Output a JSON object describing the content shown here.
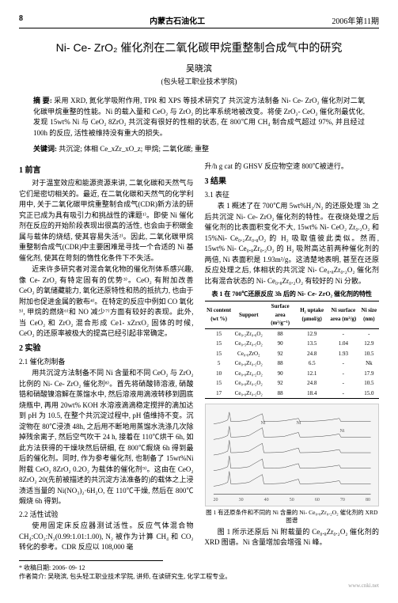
{
  "header": {
    "page_num": "8",
    "journal": "内蒙古石油化工",
    "issue": "2006年第11期"
  },
  "title": "Ni- Ce- ZrO₂ 催化剂在二氧化碳甲烷重整制合成气中的研究",
  "author": "吴晓滨",
  "affiliation": "(包头轻工职业技术学院)",
  "abstract_label": "摘  要:",
  "abstract": "采用 XRD, 氮化学吸附作用, TPR 和 XPS 等技术研究了 共沉淀方法制备 Ni- Ce- ZrO₂ 催化剂对二氧化碳甲烷重整的性能。Ni 的载入量和 CeO₂ 与 ZrO₂ 的比率系统地被改变。将使 ZrO₂- CeO₂ 催化剂最优化, 发现 15wt% Ni 与 CeO₂ 8ZrO₂ 共沉淀有很好的性相的状态, 在 800℃用 CH₄ 制合成气超过 97%, 并且经过 100h 的反应, 活性被维持没有重大的损失。",
  "keywords_label": "关键词:",
  "keywords": "共沉淀; 体相 Ce_xZr_xO_z; 甲烷; 二氧化碳; 重整",
  "col1": {
    "s1_head": "1  前言",
    "s1_p1": "对于温室效应和能源资源来讲, 二氧化碳和天然气与它们是密切相关的。最近, 在二氧化碳和天然气的化学利用中, 关于二氧化碳甲烷重整制合成气(CDR)新方法的研究正已成为具有吸引力和挑战性的课题¹⁾。即使 Ni 催化剂在反应的开始阶段表现出很高的活性, 也会由于积碳金属与载体的烧结, 使其容易失活²⁾。因此, 二氧化碳甲烷重整制合成气(CDR)中主要困难是寻找一个合适的 Ni 基催化剂, 使其在苛刻的惰性化条件下不失活。",
    "s1_p2": "近来许多研究者对混合氧化物的催化剂体系感兴趣, 像 Ce- ZrO₂ 有特定固有的优势³⁾。CeO₂ 有附加改善 CeO₂ 的氧储藏能力, 氧化还原特性和热的抵抗力, 也由于附加也促进金属的散布⁴⁾。在特定的反应中例如 CO 氧化⁵⁾, 甲烷的燃烧⁶⁾和 NO 减少⁷⁾方面有较好的表现。此外, 当 CeO₂ 和 ZrO₂ 混合形成 Ce1- xZrxO₂ 固体的时候, CeO₂ 的还原率被极大的提高已经引起非常确定。",
    "s2_head": "2  实验",
    "s2_1_head": "2.1  催化剂制备",
    "s2_1_p1": "用共沉淀方法制备不同 Ni 含量和不同 CeO₂ 与 ZrO₂ 比例的 Ni- Ce- ZrO₂ 催化剂⁸⁾。首先将硝酸铈溶液, 硝酸锆和硝酸镍溶解在蒸馏水中, 然后溶液用滴液转移到圆底烧瓶中, 再用 20wt% KOH 水溶液滴滴稳定搅拌的滴加达到 pH 为 10.5, 在整个共沉淀过程中, pH 值维持不变。沉淀物在 80℃浸渍 48h, 之后用不断地用蒸馏水洗涤几次除掉残余离子, 然后空气吹干 24 h, 接着在 110℃烘干 6h, 如此方法获得的干燥块然后研细, 在 800℃煆烧 6h 得到最后的催化剂。同时, 作为参考催化剂, 也制备了 15wt%Ni 附载 CeO₂ 8ZrO₂ 0.2O₂ 为载体的催化剂⁹⁾。这由在 CeO₂ 8ZrO₂ 20(先前被描述的共沉淀方法准备的)的载体之上浸渍适当量的 Ni(NO₃)₂·6H₂O, 在 110℃干燥, 然后在 800℃煆烧 6h 得到。",
    "s2_2_head": "2.2  活性试验",
    "s2_2_p1": "使用固定床反应器测试活性。反应气体混合物 CH₄:CO₂:N₂(0.99:1.01:1.00), N₂ 被作为计算 CH₄ 和 CO₂ 转化的参考。CDR 反应以 108,000 毫"
  },
  "col2": {
    "p0": "升/h g cat 的 GHSV 反应物空速 800℃被进行。",
    "s3_head": "3  结果",
    "s3_1_head": "3.1  表征",
    "s3_1_p1": "表 1 概述了在 700℃用 5wt%H₂/N₂ 的还原处理 3h 之后共沉淀 Ni- Ce- ZrO₂ 催化剂的特性。在夜烧处理之后催化剂的比表面积变化不大, 15wt% Ni- CeO₂ Zr₀.₂O₂ 和 15%Ni- Ce₀.₂Zr₀.₈O₂ 的 H₂ 吸取值彼此类似。然而, 15wt% Ni- Ce₀.₈Zr₀.₂O₂ 的 H₂ 吸附高达前两种催化剂的两倍, Ni 表面积是 1.93m²/g。这清楚地表明, 甚至在还原反应处理之后, 体相状的共沉淀 Ni- Ce₀.₈Zr₀.₂O₂ 催化剂比有混合状态的 Ni- Ce₀.₈Zr₀.₂O₂ 有较好的 Ni 分散。",
    "table_caption": "表 1  在 700℃还原反应 3h 后的 Ni- Ce- ZrO₂ 催化剂的特性",
    "table": {
      "headers": [
        "Ni content (wt %)",
        "Support",
        "Surface area (m²/g⁻¹)",
        "H₂ uptake (μmol/g)",
        "Ni surface area (m²/g)",
        "Ni size (nm)"
      ],
      "rows": [
        [
          "15",
          "Ce₀.₂Zr₀.₈O₂",
          "88",
          "12.9",
          "-",
          "-"
        ],
        [
          "15",
          "Ce₀.₅Zr₀.₅O₂",
          "90",
          "13.5",
          "1.04",
          "12.9"
        ],
        [
          "15",
          "Ce₀.₈ZrO₂",
          "92",
          "24.8",
          "1.93",
          "10.5"
        ],
        [
          "5",
          "Ce₀.₈Zr₀.₂O₂",
          "88",
          "6.5",
          "-",
          "Nk"
        ],
        [
          "10",
          "Ce₀.₈Zr₀.₂O₂",
          "90",
          "12.1",
          "-",
          "17.9"
        ],
        [
          "15",
          "Ce₀.₈Zr₀.₂O₂",
          "92",
          "24.8",
          "-",
          "10.5"
        ],
        [
          "17",
          "Ce₀.₈Zr₀.₂O₂",
          "88",
          "18.4",
          "-",
          "15.0"
        ]
      ]
    },
    "figure": {
      "axis_y": "",
      "axis_x": "2θ (degree)",
      "ni_label": "Ni",
      "x_ticks": [
        "20",
        "30",
        "40",
        "50",
        "60",
        "70",
        "80"
      ],
      "caption1": "图 1  有还原条件和不同的 Ni 含量的 Ni- Ce₀.₈Zr₀.₂O₂ 催化剂的 XRD 图谱",
      "caption2": "图 1 所示还原后 Ni 附载量的 Ce₀.₈Zr₀.₂O₂ 催化剂的 XRD 图谱。Ni 含量增加会增强 Ni 峰。"
    }
  },
  "footnotes": {
    "received": "*  收稿日期: 2006- 09- 12",
    "author_info": "作者简介: 吴晓滨, 包头轻工职业技术学院, 讲师, 在读研究生, 化学工程专业。"
  },
  "watermark": "www.cnki.net"
}
